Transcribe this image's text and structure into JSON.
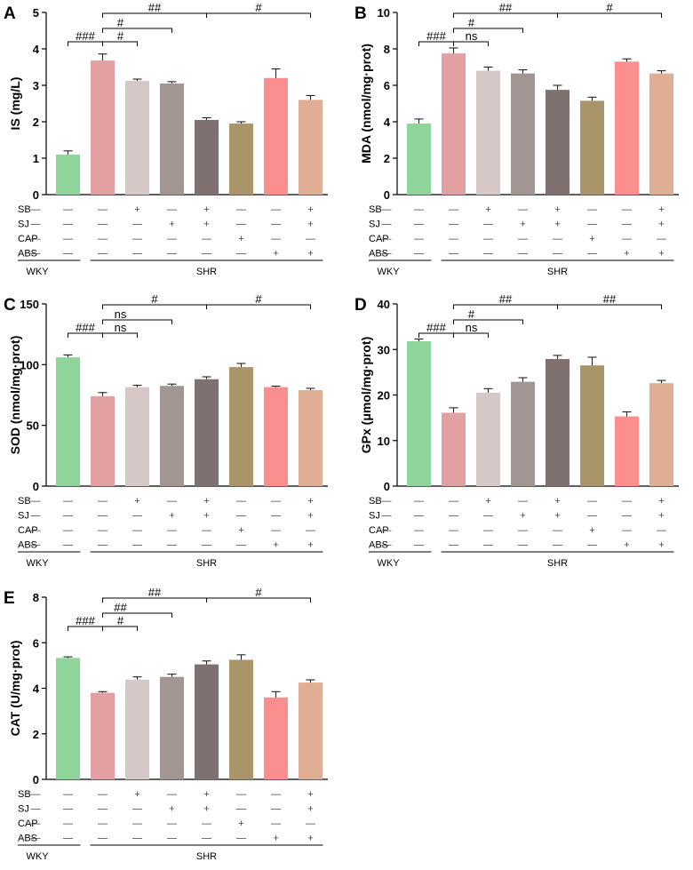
{
  "figure": {
    "groups": {
      "wky": "WKY",
      "shr": "SHR"
    },
    "treatment_rows": [
      {
        "label": "SB",
        "marks": [
          "—",
          "—",
          "+",
          "—",
          "+",
          "—",
          "—",
          "+"
        ]
      },
      {
        "label": "SJ",
        "marks": [
          "—",
          "—",
          "—",
          "+",
          "+",
          "—",
          "—",
          "+"
        ]
      },
      {
        "label": "CAP",
        "marks": [
          "—",
          "—",
          "—",
          "—",
          "—",
          "+",
          "—",
          "—"
        ]
      },
      {
        "label": "ABS",
        "marks": [
          "—",
          "—",
          "—",
          "—",
          "—",
          "—",
          "+",
          "+"
        ]
      }
    ],
    "colors": [
      "#8fd49a",
      "#e3a0a3",
      "#d5c8c6",
      "#a29693",
      "#7f716f",
      "#aa9469",
      "#fb8e8e",
      "#e0ad95"
    ]
  },
  "chart_data": [
    {
      "panel": "A",
      "type": "bar",
      "ylabel": "IS (mg/L)",
      "ylim": [
        0,
        5
      ],
      "yticks": [
        0,
        1,
        2,
        3,
        4,
        5
      ],
      "values": [
        1.1,
        3.68,
        3.12,
        3.05,
        2.05,
        1.95,
        3.2,
        2.6
      ],
      "errors": [
        0.1,
        0.18,
        0.05,
        0.05,
        0.06,
        0.05,
        0.25,
        0.12
      ],
      "annotations": [
        {
          "label": "###",
          "from": 0,
          "to": 1,
          "level": 1
        },
        {
          "label": "#",
          "from": 1,
          "to": 2,
          "level": 1
        },
        {
          "label": "#",
          "from": 1,
          "to": 3,
          "level": 2
        },
        {
          "label": "##",
          "from": 1,
          "to": 4,
          "level": 3
        },
        {
          "label": "#",
          "from": 4,
          "to": 7,
          "level": 3
        }
      ]
    },
    {
      "panel": "B",
      "type": "bar",
      "ylabel": "MDA (nmol/mg·prot)",
      "ylim": [
        0,
        10
      ],
      "yticks": [
        0,
        2,
        4,
        6,
        8,
        10
      ],
      "values": [
        3.9,
        7.75,
        6.8,
        6.65,
        5.75,
        5.15,
        7.3,
        6.65
      ],
      "errors": [
        0.25,
        0.3,
        0.2,
        0.2,
        0.25,
        0.2,
        0.15,
        0.15
      ],
      "annotations": [
        {
          "label": "###",
          "from": 0,
          "to": 1,
          "level": 1
        },
        {
          "label": "ns",
          "from": 1,
          "to": 2,
          "level": 1
        },
        {
          "label": "#",
          "from": 1,
          "to": 3,
          "level": 2
        },
        {
          "label": "##",
          "from": 1,
          "to": 4,
          "level": 3
        },
        {
          "label": "#",
          "from": 4,
          "to": 7,
          "level": 3
        }
      ]
    },
    {
      "panel": "C",
      "type": "bar",
      "ylabel": "SOD (nmol/mg·prot)",
      "ylim": [
        0,
        150
      ],
      "yticks": [
        0,
        50,
        100,
        150
      ],
      "values": [
        106,
        74,
        81.5,
        82.5,
        88,
        98,
        81.5,
        79
      ],
      "errors": [
        2,
        3,
        1.5,
        1.5,
        2,
        3,
        0.8,
        1.5
      ],
      "annotations": [
        {
          "label": "###",
          "from": 0,
          "to": 1,
          "level": 1
        },
        {
          "label": "ns",
          "from": 1,
          "to": 2,
          "level": 1
        },
        {
          "label": "ns",
          "from": 1,
          "to": 3,
          "level": 2
        },
        {
          "label": "#",
          "from": 1,
          "to": 4,
          "level": 3
        },
        {
          "label": "#",
          "from": 4,
          "to": 7,
          "level": 3
        }
      ]
    },
    {
      "panel": "D",
      "type": "bar",
      "ylabel": "GPx (μmol/mg·prot)",
      "ylim": [
        0,
        40
      ],
      "yticks": [
        0,
        10,
        20,
        30,
        40
      ],
      "values": [
        31.8,
        16.1,
        20.5,
        22.9,
        27.9,
        26.5,
        15.3,
        22.6
      ],
      "errors": [
        0.5,
        1.1,
        0.9,
        0.9,
        0.8,
        1.8,
        1,
        0.6
      ],
      "annotations": [
        {
          "label": "###",
          "from": 0,
          "to": 1,
          "level": 1
        },
        {
          "label": "ns",
          "from": 1,
          "to": 2,
          "level": 1
        },
        {
          "label": "#",
          "from": 1,
          "to": 3,
          "level": 2
        },
        {
          "label": "##",
          "from": 1,
          "to": 4,
          "level": 3
        },
        {
          "label": "##",
          "from": 4,
          "to": 7,
          "level": 3
        }
      ]
    },
    {
      "panel": "E",
      "type": "bar",
      "ylabel": "CAT (U/mg·prot)",
      "ylim": [
        0,
        8
      ],
      "yticks": [
        0,
        2,
        4,
        6,
        8
      ],
      "values": [
        5.33,
        3.8,
        4.38,
        4.5,
        5.05,
        5.25,
        3.6,
        4.25
      ],
      "errors": [
        0.05,
        0.05,
        0.12,
        0.12,
        0.15,
        0.22,
        0.25,
        0.12
      ],
      "annotations": [
        {
          "label": "###",
          "from": 0,
          "to": 1,
          "level": 1
        },
        {
          "label": "#",
          "from": 1,
          "to": 2,
          "level": 1
        },
        {
          "label": "##",
          "from": 1,
          "to": 3,
          "level": 2
        },
        {
          "label": "##",
          "from": 1,
          "to": 4,
          "level": 3
        },
        {
          "label": "#",
          "from": 4,
          "to": 7,
          "level": 3
        }
      ]
    }
  ]
}
